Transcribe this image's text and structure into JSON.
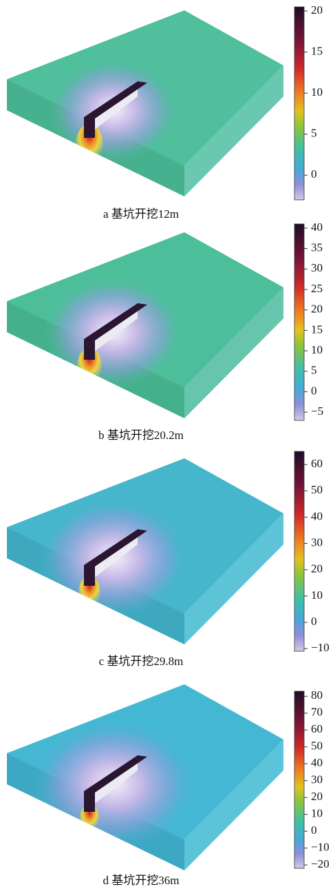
{
  "panels": [
    {
      "caption": "a 基坑开挖12m",
      "colorbar": {
        "lim": [
          -3,
          20.5
        ],
        "ticks": [
          20,
          15,
          10,
          5,
          0
        ]
      }
    },
    {
      "caption": "b 基坑开挖20.2m",
      "colorbar": {
        "lim": [
          -7,
          41
        ],
        "ticks": [
          40,
          35,
          30,
          25,
          20,
          15,
          10,
          5,
          0,
          {
            "value": -5,
            "label": "−5"
          }
        ]
      }
    },
    {
      "caption": "c 基坑开挖29.8m",
      "colorbar": {
        "lim": [
          -11,
          65
        ],
        "ticks": [
          60,
          50,
          40,
          30,
          20,
          10,
          0,
          {
            "value": -10,
            "label": "−10"
          }
        ]
      }
    },
    {
      "caption": "d 基坑开挖36m",
      "colorbar": {
        "lim": [
          -22,
          83
        ],
        "ticks": [
          80,
          70,
          60,
          50,
          40,
          30,
          20,
          10,
          0,
          {
            "value": -10,
            "label": "−10"
          },
          {
            "value": -20,
            "label": "−20"
          }
        ]
      }
    }
  ]
}
